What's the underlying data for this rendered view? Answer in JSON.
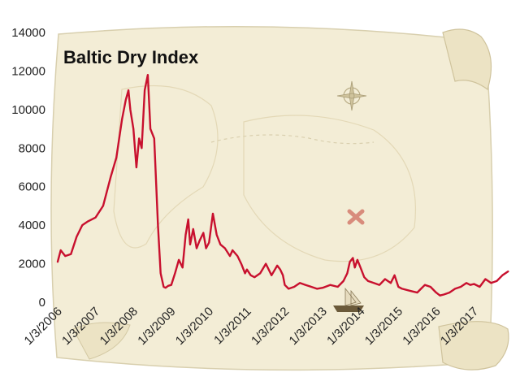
{
  "chart_data": {
    "type": "line",
    "title": "Baltic Dry Index",
    "xlabel": "",
    "ylabel": "",
    "ylim": [
      0,
      14000
    ],
    "yticks": [
      "0",
      "2000",
      "4000",
      "6000",
      "8000",
      "10000",
      "12000",
      "14000"
    ],
    "xticks": [
      "1/3/2006",
      "1/3/2007",
      "1/3/2008",
      "1/3/2009",
      "1/3/2010",
      "1/3/2011",
      "1/3/2012",
      "1/3/2013",
      "1/3/2014",
      "1/3/2015",
      "1/3/2016",
      "1/3/2017"
    ],
    "grid": false,
    "legend": "none",
    "series_color": "#c8102e",
    "series": [
      {
        "x": [
          2006.0,
          2006.08,
          2006.2,
          2006.35,
          2006.5,
          2006.65,
          2006.8,
          2007.0,
          2007.2,
          2007.4,
          2007.55,
          2007.7,
          2007.8,
          2007.87,
          2007.92,
          2008.0,
          2008.08,
          2008.15,
          2008.22,
          2008.3,
          2008.38,
          2008.45,
          2008.55,
          2008.65,
          2008.72,
          2008.8,
          2008.85,
          2008.92,
          2009.0,
          2009.1,
          2009.2,
          2009.3,
          2009.38,
          2009.45,
          2009.5,
          2009.58,
          2009.67,
          2009.75,
          2009.85,
          2009.92,
          2010.0,
          2010.1,
          2010.2,
          2010.3,
          2010.42,
          2010.55,
          2010.62,
          2010.75,
          2010.85,
          2010.95,
          2011.0,
          2011.1,
          2011.2,
          2011.35,
          2011.5,
          2011.65,
          2011.8,
          2011.88,
          2011.95,
          2012.0,
          2012.1,
          2012.25,
          2012.4,
          2012.55,
          2012.7,
          2012.85,
          2013.0,
          2013.2,
          2013.4,
          2013.55,
          2013.65,
          2013.72,
          2013.8,
          2013.85,
          2013.92,
          2014.0,
          2014.1,
          2014.2,
          2014.35,
          2014.5,
          2014.65,
          2014.8,
          2014.9,
          2015.0,
          2015.1,
          2015.3,
          2015.5,
          2015.6,
          2015.7,
          2015.85,
          2016.0,
          2016.1,
          2016.2,
          2016.35,
          2016.5,
          2016.65,
          2016.8,
          2016.9,
          2017.0,
          2017.15,
          2017.3,
          2017.45,
          2017.6,
          2017.75,
          2017.9
        ],
        "values": [
          2100,
          2700,
          2400,
          2500,
          3400,
          4000,
          4200,
          4400,
          5000,
          6500,
          7500,
          9500,
          10500,
          11000,
          10000,
          9000,
          7000,
          8500,
          8000,
          11000,
          11800,
          9000,
          8500,
          4000,
          1500,
          800,
          750,
          850,
          900,
          1500,
          2200,
          1800,
          3500,
          4300,
          3000,
          3800,
          2800,
          3200,
          3600,
          2800,
          3100,
          4600,
          3500,
          3000,
          2800,
          2400,
          2700,
          2400,
          2000,
          1500,
          1700,
          1400,
          1300,
          1500,
          2000,
          1400,
          1900,
          1700,
          1400,
          900,
          700,
          800,
          1000,
          900,
          800,
          700,
          750,
          900,
          800,
          1100,
          1500,
          2100,
          2300,
          1800,
          2200,
          1800,
          1300,
          1100,
          1000,
          900,
          1200,
          1000,
          1400,
          800,
          700,
          600,
          500,
          700,
          900,
          800,
          500,
          350,
          400,
          500,
          700,
          800,
          1000,
          900,
          950,
          800,
          1200,
          1000,
          1100,
          1400,
          1600
        ]
      }
    ]
  }
}
